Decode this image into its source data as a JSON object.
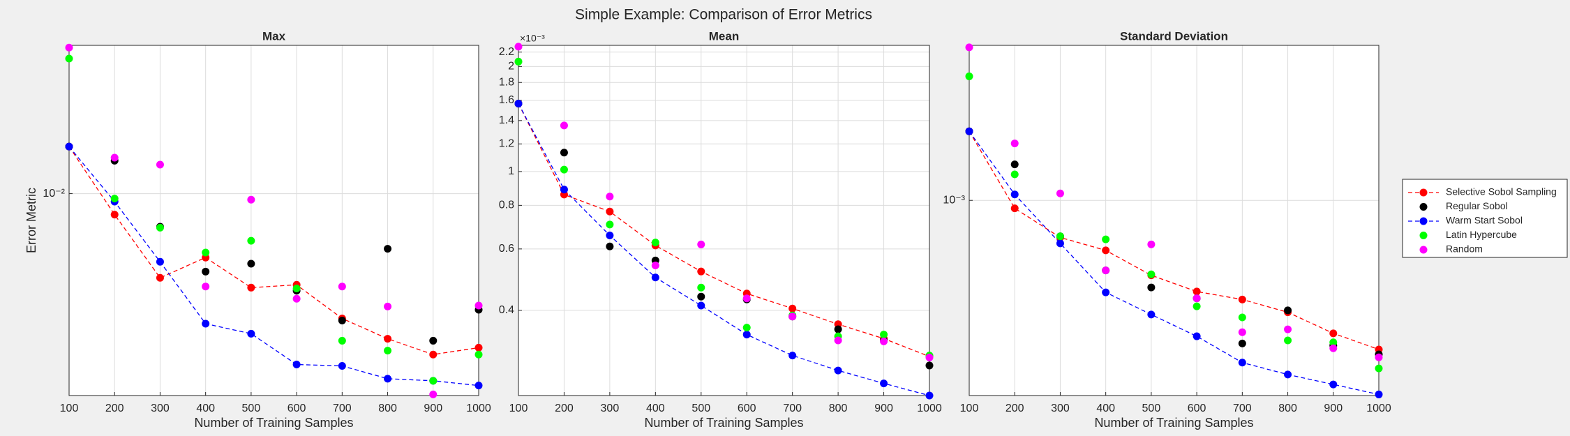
{
  "title": "Simple Example: Comparison of Error Metrics",
  "chart_data": [
    {
      "type": "scatter",
      "title": "Max",
      "xlabel": "Number of Training Samples",
      "ylabel": "Error Metric",
      "x": [
        100,
        200,
        300,
        400,
        500,
        600,
        700,
        800,
        900,
        1000
      ],
      "xlim": [
        100,
        1000
      ],
      "xticks": [
        100,
        200,
        300,
        400,
        500,
        600,
        700,
        800,
        900,
        1000
      ],
      "ylim": [
        0.00264,
        0.0266
      ],
      "yticks": [
        {
          "value": 0.01,
          "label": "10⁻²"
        }
      ],
      "log_y": true,
      "grid": true,
      "legend": "east",
      "series": [
        {
          "name": "Selective Sobol Sampling",
          "color": "#ff0000",
          "line": true,
          "values": [
            0.01364,
            0.00871,
            0.00574,
            0.00656,
            0.00538,
            0.00548,
            0.00439,
            0.00384,
            0.00346,
            0.00362
          ]
        },
        {
          "name": "Regular Sobol",
          "color": "#000000",
          "line": false,
          "values": [
            0.01364,
            0.01243,
            0.00804,
            0.00598,
            0.0063,
            0.00527,
            0.00433,
            0.00695,
            0.00379,
            0.00465
          ]
        },
        {
          "name": "Warm Start Sobol",
          "color": "#0000ff",
          "line": true,
          "values": [
            0.01364,
            0.00949,
            0.00638,
            0.00424,
            0.00397,
            0.00324,
            0.00321,
            0.00295,
            0.00291,
            0.00282
          ]
        },
        {
          "name": "Latin Hypercube",
          "color": "#00ff00",
          "line": false,
          "values": [
            0.02437,
            0.00968,
            0.00799,
            0.00678,
            0.00733,
            0.00535,
            0.00379,
            0.00355,
            0.00291,
            0.00346
          ]
        },
        {
          "name": "Random",
          "color": "#ff00ff",
          "line": false,
          "values": [
            0.0262,
            0.01268,
            0.01211,
            0.00542,
            0.00961,
            0.005,
            0.00542,
            0.00475,
            0.00266,
            0.00478
          ]
        }
      ]
    },
    {
      "type": "scatter",
      "title": "Mean",
      "xlabel": "Number of Training Samples",
      "y_exponent_label": "×10⁻³",
      "x": [
        100,
        200,
        300,
        400,
        500,
        600,
        700,
        800,
        900,
        1000
      ],
      "xlim": [
        100,
        1000
      ],
      "xticks": [
        100,
        200,
        300,
        400,
        500,
        600,
        700,
        800,
        900,
        1000
      ],
      "ylim": [
        0.228,
        2.3
      ],
      "yticks": [
        0.4,
        0.6,
        0.8,
        1,
        1.2,
        1.4,
        1.6,
        1.8,
        2,
        2.2
      ],
      "log_y": true,
      "grid": true,
      "series": [
        {
          "color": "#ff0000",
          "line": true,
          "values": [
            1.566,
            0.859,
            0.768,
            0.614,
            0.517,
            0.447,
            0.405,
            0.365,
            0.332,
            0.295
          ]
        },
        {
          "color": "#000000",
          "line": false,
          "values": [
            1.566,
            1.133,
            0.61,
            0.556,
            0.438,
            0.43,
            0.384,
            0.353,
            0.328,
            0.278
          ]
        },
        {
          "color": "#0000ff",
          "line": true,
          "values": [
            1.566,
            0.888,
            0.656,
            0.497,
            0.413,
            0.341,
            0.297,
            0.269,
            0.247,
            0.228
          ]
        },
        {
          "color": "#00ff00",
          "line": false,
          "values": [
            2.066,
            1.013,
            0.705,
            0.626,
            0.465,
            0.357,
            0.387,
            0.337,
            0.341,
            0.297
          ]
        },
        {
          "color": "#ff00ff",
          "line": false,
          "values": [
            2.28,
            1.355,
            0.848,
            0.538,
            0.618,
            0.433,
            0.384,
            0.328,
            0.326,
            0.293
          ]
        }
      ]
    },
    {
      "type": "scatter",
      "title": "Standard Deviation",
      "xlabel": "Number of Training Samples",
      "x": [
        100,
        200,
        300,
        400,
        500,
        600,
        700,
        800,
        900,
        1000
      ],
      "xlim": [
        100,
        1000
      ],
      "xticks": [
        100,
        200,
        300,
        400,
        500,
        600,
        700,
        800,
        900,
        1000
      ],
      "ylim": [
        0.000276,
        0.00278
      ],
      "yticks": [
        {
          "value": 0.001,
          "label": "10⁻³"
        }
      ],
      "log_y": true,
      "grid": true,
      "series": [
        {
          "color": "#ff0000",
          "line": true,
          "values": [
            0.001577,
            0.000949,
            0.000783,
            0.000719,
            0.00061,
            0.000548,
            0.00052,
            0.000478,
            0.000416,
            0.000374
          ]
        },
        {
          "color": "#000000",
          "line": false,
          "values": [
            0.001577,
            0.001268,
            0.000789,
            0.00063,
            0.000563,
            0.000524,
            0.000389,
            0.000484,
            0.000384,
            0.000362
          ]
        },
        {
          "color": "#0000ff",
          "line": true,
          "values": [
            0.001577,
            0.00104,
            0.000753,
            0.000545,
            0.000471,
            0.000408,
            0.000343,
            0.000317,
            0.000297,
            0.000278
          ]
        },
        {
          "color": "#00ff00",
          "line": false,
          "values": [
            0.002266,
            0.001187,
            0.000789,
            0.000773,
            0.000614,
            0.000497,
            0.000462,
            0.000397,
            0.000392,
            0.00033
          ]
        },
        {
          "color": "#ff00ff",
          "line": false,
          "values": [
            0.002743,
            0.001456,
            0.001047,
            0.00063,
            0.000748,
            0.000524,
            0.000419,
            0.000427,
            0.000377,
            0.000355
          ]
        }
      ]
    }
  ]
}
